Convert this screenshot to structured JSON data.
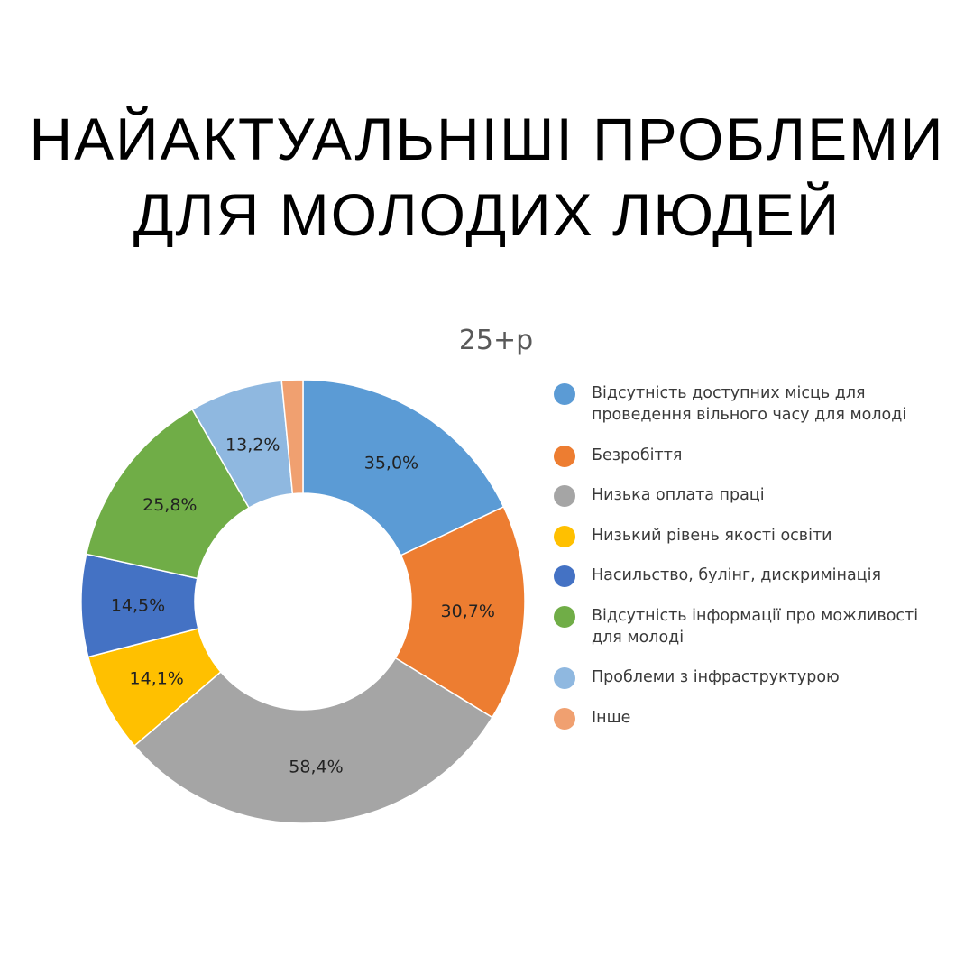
{
  "title_lines": [
    "НАЙАКТУАЛЬНІШІ ПРОБЛЕМИ",
    "ДЛЯ МОЛОДИХ ЛЮДЕЙ"
  ],
  "chart_data": {
    "type": "donut",
    "title": "25+р",
    "legend_position": "right",
    "categories": [
      "Відсутність доступних місць для проведення вільного часу для молоді",
      "Безробіття",
      "Низька оплата праці",
      "Низький рівень якості освіти",
      "Насильство, булінг, дискримінація",
      "Відсутність інформації про можливості для молоді",
      "Проблеми з інфраструктурою",
      "Інше"
    ],
    "values": [
      35.0,
      30.7,
      58.4,
      14.1,
      14.5,
      25.8,
      13.2,
      3.0
    ],
    "data_labels": [
      "35,0%",
      "30,7%",
      "58,4%",
      "14,1%",
      "14,5%",
      "25,8%",
      "13,2%",
      ""
    ],
    "colors": [
      "#5b9bd5",
      "#ed7d31",
      "#a5a5a5",
      "#ffc000",
      "#4472c4",
      "#70ad47",
      "#8fb8e0",
      "#f0a070"
    ]
  }
}
